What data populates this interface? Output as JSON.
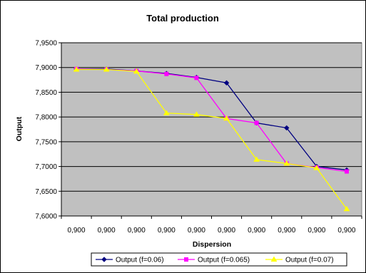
{
  "chart_data": {
    "type": "line",
    "title": "Total production",
    "xlabel": "Dispersion",
    "ylabel": "Output",
    "categories": [
      "0,900",
      "0,900",
      "0,900",
      "0,900",
      "0,900",
      "0,900",
      "0,900",
      "0,900",
      "0,900",
      "0,900"
    ],
    "ylim": [
      7.6,
      7.95
    ],
    "yticks": [
      "7,6000",
      "7,6500",
      "7,7000",
      "7,7500",
      "7,8000",
      "7,8500",
      "7,9000",
      "7,9500"
    ],
    "ytick_values": [
      7.6,
      7.65,
      7.7,
      7.75,
      7.8,
      7.85,
      7.9,
      7.95
    ],
    "grid": true,
    "legend_position": "bottom",
    "plot_background": "#c0c0c0",
    "series": [
      {
        "name": "Output (f=0.06)",
        "color": "#000080",
        "marker": "diamond",
        "values": [
          7.897,
          7.897,
          7.893,
          7.888,
          7.88,
          7.869,
          7.788,
          7.778,
          7.7,
          7.693
        ]
      },
      {
        "name": "Output (f=0.065)",
        "color": "#ff00ff",
        "marker": "square",
        "values": [
          7.897,
          7.896,
          7.893,
          7.887,
          7.879,
          7.797,
          7.788,
          7.706,
          7.698,
          7.69
        ]
      },
      {
        "name": "Output (f=0.07)",
        "color": "#ffff00",
        "marker": "triangle",
        "values": [
          7.896,
          7.896,
          7.892,
          7.808,
          7.805,
          7.797,
          7.714,
          7.706,
          7.697,
          7.614
        ]
      }
    ]
  }
}
